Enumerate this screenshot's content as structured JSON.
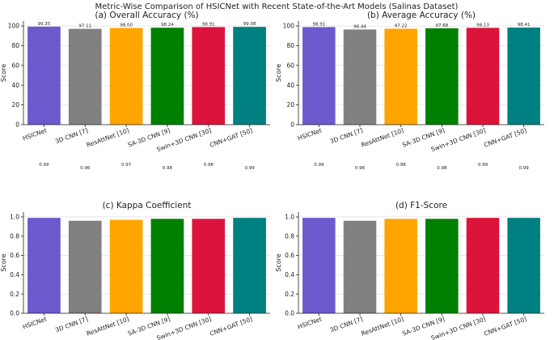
{
  "suptitle": "Metric-Wise Comparison of HSICNet with Recent State-of-the-Art Models (Salinas Dataset)",
  "chart_data": [
    {
      "type": "bar",
      "title": "(a) Overall Accuracy (%)",
      "ylabel": "Score",
      "xlabel": "",
      "ylim": [
        0,
        105
      ],
      "yticks": [
        "0",
        "20",
        "40",
        "60",
        "80",
        "100"
      ],
      "ytick_values": [
        0,
        20,
        40,
        60,
        80,
        100
      ],
      "categories": [
        "HSICNet",
        "3D CNN [7]",
        "ResAttNet [10]",
        "SA-3D CNN [9]",
        "Swin+3D CNN [30]",
        "CNN+GAT [50]"
      ],
      "values": [
        99.35,
        97.11,
        98.0,
        98.24,
        98.91,
        99.08
      ],
      "labels": [
        "99.35",
        "97.11",
        "98.00",
        "98.24",
        "98.91",
        "99.08"
      ],
      "grid": true
    },
    {
      "type": "bar",
      "title": "(b) Average Accuracy (%)",
      "ylabel": "Score",
      "xlabel": "",
      "ylim": [
        0,
        105
      ],
      "yticks": [
        "0",
        "20",
        "40",
        "60",
        "80",
        "100"
      ],
      "ytick_values": [
        0,
        20,
        40,
        60,
        80,
        100
      ],
      "categories": [
        "HSICNet",
        "3D CNN [7]",
        "ResAttNet [10]",
        "SA-3D CNN [9]",
        "Swin+3D CNN [30]",
        "CNN+GAT [50]"
      ],
      "values": [
        98.91,
        96.44,
        97.22,
        97.68,
        98.13,
        98.41
      ],
      "labels": [
        "98.91",
        "96.44",
        "97.22",
        "97.68",
        "98.13",
        "98.41"
      ],
      "grid": true
    },
    {
      "type": "bar",
      "title": "(c) Kappa Coefficient",
      "ylabel": "Score",
      "xlabel": "",
      "ylim": [
        0,
        1.05
      ],
      "yticks": [
        "0.0",
        "0.2",
        "0.4",
        "0.6",
        "0.8",
        "1.0"
      ],
      "ytick_values": [
        0,
        0.2,
        0.4,
        0.6,
        0.8,
        1.0
      ],
      "categories": [
        "HSICNet",
        "3D CNN [7]",
        "ResAttNet [10]",
        "SA-3D CNN [9]",
        "Swin+3D CNN [30]",
        "CNN+GAT [50]"
      ],
      "values": [
        0.99,
        0.96,
        0.97,
        0.98,
        0.98,
        0.99
      ],
      "labels": [
        "0.99",
        "0.96",
        "0.97",
        "0.98",
        "0.98",
        "0.99"
      ],
      "grid": true
    },
    {
      "type": "bar",
      "title": "(d) F1-Score",
      "ylabel": "Score",
      "xlabel": "",
      "ylim": [
        0,
        1.05
      ],
      "yticks": [
        "0.0",
        "0.2",
        "0.4",
        "0.6",
        "0.8",
        "1.0"
      ],
      "ytick_values": [
        0,
        0.2,
        0.4,
        0.6,
        0.8,
        1.0
      ],
      "categories": [
        "HSICNet",
        "3D CNN [7]",
        "ResAttNet [10]",
        "SA-3D CNN [9]",
        "Swin+3D CNN [30]",
        "CNN+GAT [50]"
      ],
      "values": [
        0.99,
        0.96,
        0.98,
        0.98,
        0.99,
        0.99
      ],
      "labels": [
        "0.99",
        "0.96",
        "0.98",
        "0.98",
        "0.99",
        "0.99"
      ],
      "grid": true
    }
  ],
  "colors": [
    "#6a5acd",
    "#808080",
    "#ffa500",
    "#008000",
    "#dc143c",
    "#008080"
  ]
}
